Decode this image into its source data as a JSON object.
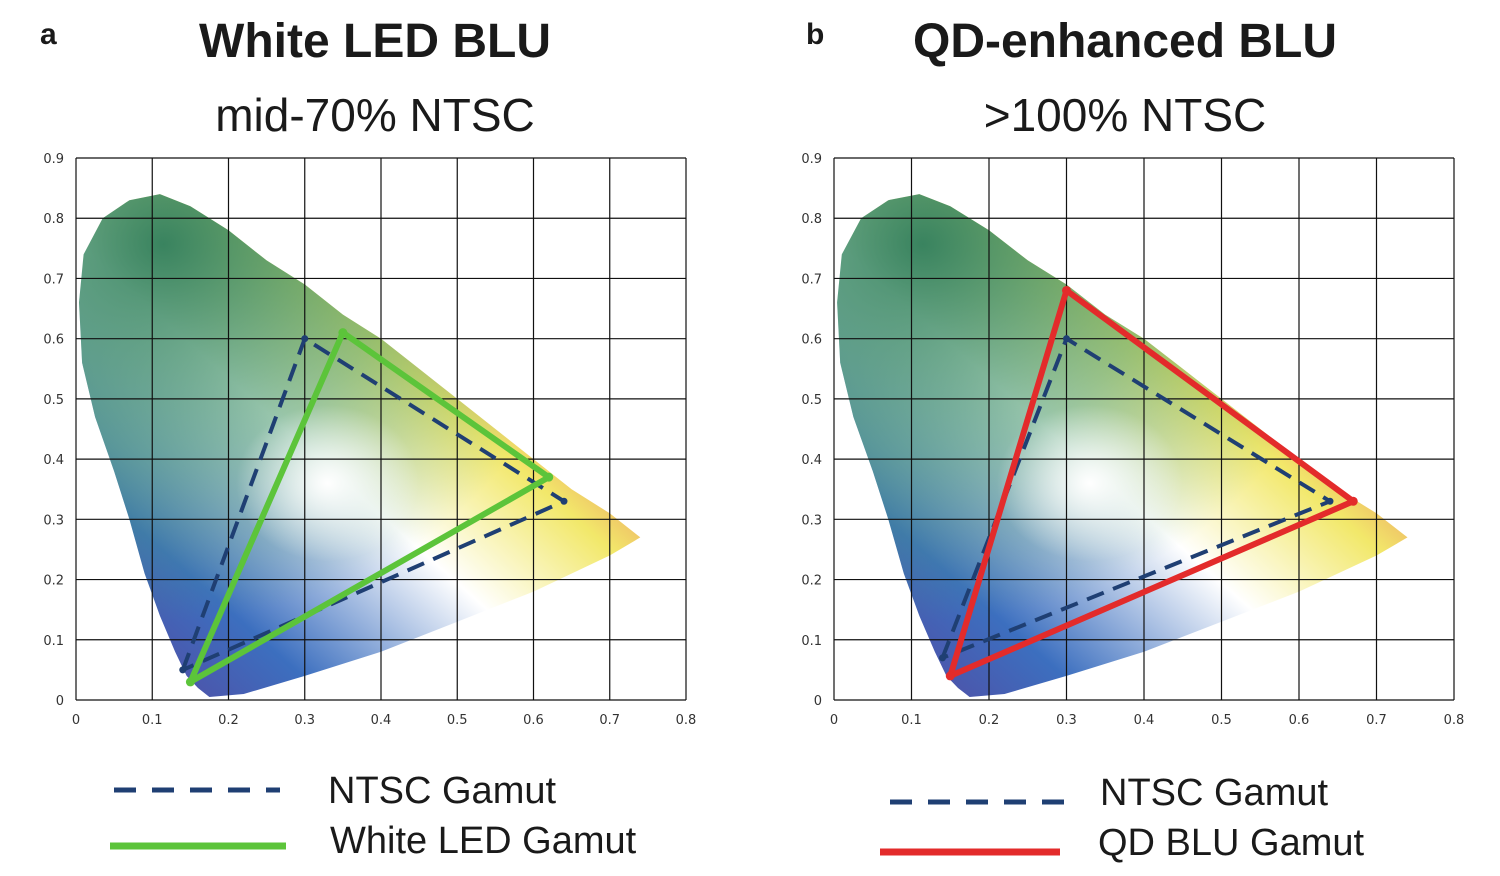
{
  "chart_data": [
    {
      "type": "line",
      "panel_label": "a",
      "title": "White LED BLU",
      "subtitle": "mid-70% NTSC",
      "xlim": [
        0,
        0.8
      ],
      "ylim": [
        0,
        0.9
      ],
      "x_ticks": [
        "0",
        "0.1",
        "0.2",
        "0.3",
        "0.4",
        "0.5",
        "0.6",
        "0.7",
        "0.8"
      ],
      "y_ticks": [
        "0",
        "0.1",
        "0.2",
        "0.3",
        "0.4",
        "0.5",
        "0.6",
        "0.7",
        "0.8",
        "0.9"
      ],
      "grid": true,
      "series": [
        {
          "name": "NTSC Gamut",
          "style": "dashed",
          "color": "#1f3f73",
          "points": [
            [
              0.14,
              0.05
            ],
            [
              0.3,
              0.6
            ],
            [
              0.64,
              0.33
            ]
          ]
        },
        {
          "name": "White LED Gamut",
          "style": "solid",
          "color": "#5cc43a",
          "points": [
            [
              0.15,
              0.03
            ],
            [
              0.35,
              0.61
            ],
            [
              0.62,
              0.37
            ]
          ]
        }
      ]
    },
    {
      "type": "line",
      "panel_label": "b",
      "title": "QD-enhanced BLU",
      "subtitle": ">100% NTSC",
      "xlim": [
        0,
        0.8
      ],
      "ylim": [
        0,
        0.9
      ],
      "x_ticks": [
        "0",
        "0.1",
        "0.2",
        "0.3",
        "0.4",
        "0.5",
        "0.6",
        "0.7",
        "0.8"
      ],
      "y_ticks": [
        "0",
        "0.1",
        "0.2",
        "0.3",
        "0.4",
        "0.5",
        "0.6",
        "0.7",
        "0.8",
        "0.9"
      ],
      "grid": true,
      "series": [
        {
          "name": "NTSC Gamut",
          "style": "dashed",
          "color": "#1f3f73",
          "points": [
            [
              0.14,
              0.07
            ],
            [
              0.3,
              0.6
            ],
            [
              0.64,
              0.33
            ]
          ]
        },
        {
          "name": "QD BLU Gamut",
          "style": "solid",
          "color": "#e32b2b",
          "points": [
            [
              0.15,
              0.04
            ],
            [
              0.3,
              0.68
            ],
            [
              0.67,
              0.33
            ]
          ]
        }
      ]
    }
  ]
}
